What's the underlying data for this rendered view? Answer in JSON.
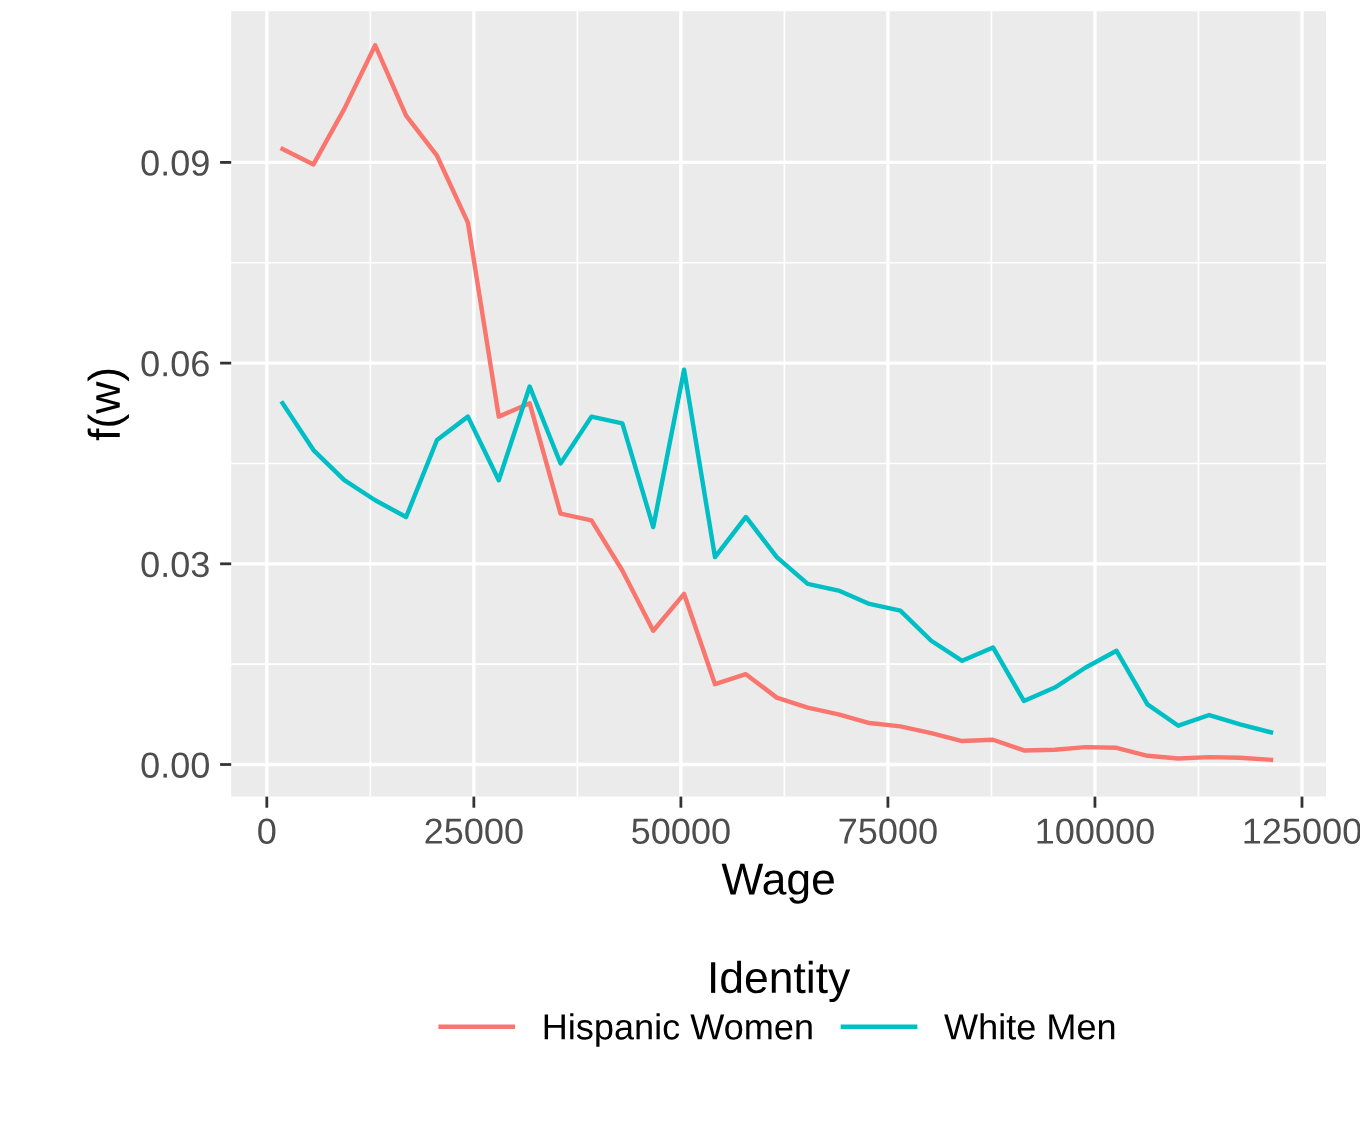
{
  "chart_data": {
    "type": "line",
    "xlabel": "Wage",
    "ylabel": "f(w)",
    "legend_title": "Identity",
    "legend": "bottom",
    "grid": true,
    "marker": "none",
    "line_style": "solid",
    "xlim": [
      -4300,
      127900
    ],
    "ylim": [
      -0.0048,
      0.1126
    ],
    "xticks": [
      0,
      25000,
      50000,
      75000,
      100000,
      125000
    ],
    "yticks": [
      {
        "value": 0,
        "label": "0.00"
      },
      {
        "value": 0.03,
        "label": "0.03"
      },
      {
        "value": 0.06,
        "label": "0.06"
      },
      {
        "value": 0.09,
        "label": "0.09"
      }
    ],
    "x": [
      1900,
      5630,
      9360,
      13090,
      16820,
      20550,
      24280,
      28010,
      31740,
      35470,
      39200,
      42930,
      46660,
      50390,
      54120,
      57850,
      61580,
      65310,
      69040,
      72770,
      76500,
      80230,
      83960,
      87690,
      91420,
      95150,
      98880,
      102610,
      106340,
      110070,
      113800,
      117530,
      121260
    ],
    "series": [
      {
        "name": "Hispanic Women",
        "color": "#f8766d",
        "values": [
          0.092,
          0.0897,
          0.098,
          0.1075,
          0.097,
          0.091,
          0.081,
          0.052,
          0.054,
          0.0375,
          0.0365,
          0.029,
          0.02,
          0.0255,
          0.012,
          0.0135,
          0.01,
          0.0085,
          0.0075,
          0.0062,
          0.0057,
          0.0047,
          0.0035,
          0.0037,
          0.0021,
          0.0022,
          0.0026,
          0.0025,
          0.0013,
          0.0009,
          0.0011,
          0.001,
          0.0007
        ]
      },
      {
        "name": "White Men",
        "color": "#00bfc4",
        "values": [
          0.054,
          0.047,
          0.0425,
          0.0395,
          0.037,
          0.0485,
          0.052,
          0.0425,
          0.0565,
          0.045,
          0.052,
          0.051,
          0.0355,
          0.059,
          0.031,
          0.037,
          0.031,
          0.027,
          0.026,
          0.024,
          0.023,
          0.0185,
          0.0155,
          0.0175,
          0.0095,
          0.0115,
          0.0145,
          0.017,
          0.009,
          0.0058,
          0.0074,
          0.006,
          0.0048
        ]
      }
    ]
  }
}
